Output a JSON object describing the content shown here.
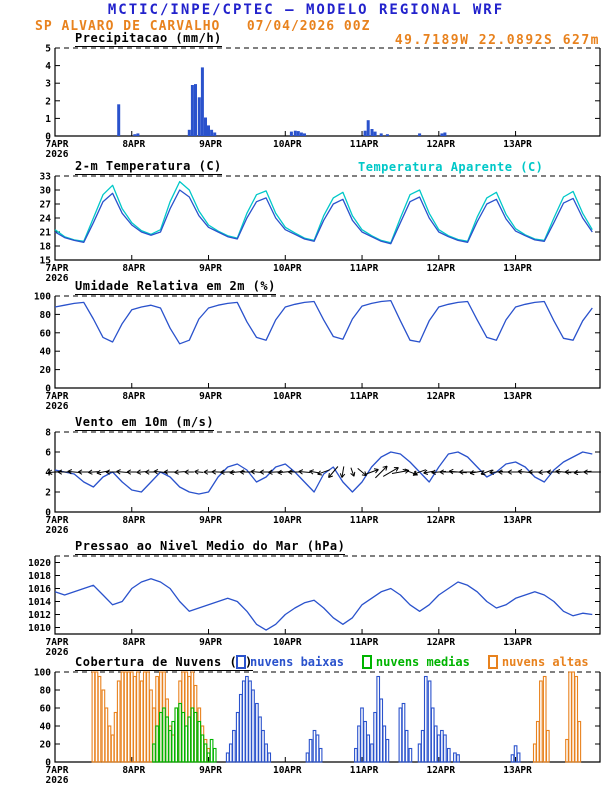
{
  "header": {
    "title": "MCTIC/INPE/CPTEC — MODELO REGIONAL WRF",
    "subtitle": "SP ALVARO DE CARVALHO   07/04/2026 00Z",
    "location": "49.7189W 22.0892S 627m"
  },
  "colors": {
    "blue": "#2a52cc",
    "cyan": "#00c8c8",
    "green": "#00b400",
    "orange": "#e8821e",
    "title": "#2222cc",
    "black": "#000000"
  },
  "x_axis": {
    "tick_labels": [
      "7APR",
      "8APR",
      "9APR",
      "10APR",
      "11APR",
      "12APR",
      "13APR"
    ],
    "year_label": "2026",
    "range_days": [
      0,
      7.1
    ]
  },
  "chart_data": [
    {
      "type": "bar",
      "title": "Precipitacao (mm/h)",
      "ylim": [
        0,
        5
      ],
      "yticks": [
        0,
        1,
        2,
        3,
        4,
        5
      ],
      "series": [
        {
          "name": "precipitacao",
          "color": "blue",
          "points": [
            [
              0.83,
              1.8
            ],
            [
              1.04,
              0.1
            ],
            [
              1.08,
              0.15
            ],
            [
              1.75,
              0.35
            ],
            [
              1.79,
              2.9
            ],
            [
              1.83,
              2.95
            ],
            [
              1.88,
              2.2
            ],
            [
              1.92,
              3.9
            ],
            [
              1.96,
              1.05
            ],
            [
              2.0,
              0.6
            ],
            [
              2.04,
              0.35
            ],
            [
              2.08,
              0.2
            ],
            [
              3.08,
              0.25
            ],
            [
              3.13,
              0.3
            ],
            [
              3.17,
              0.28
            ],
            [
              3.21,
              0.2
            ],
            [
              3.25,
              0.15
            ],
            [
              4.04,
              0.3
            ],
            [
              4.08,
              0.9
            ],
            [
              4.13,
              0.4
            ],
            [
              4.17,
              0.25
            ],
            [
              4.25,
              0.15
            ],
            [
              4.33,
              0.1
            ],
            [
              4.75,
              0.15
            ],
            [
              5.04,
              0.15
            ],
            [
              5.08,
              0.2
            ]
          ]
        }
      ]
    },
    {
      "type": "line",
      "title": "2-m Temperatura (C)",
      "right_legend": "Temperatura Aparente (C)",
      "ylim": [
        15,
        33
      ],
      "yticks": [
        15,
        18,
        21,
        24,
        27,
        30,
        33
      ],
      "x_step_days": 0.125,
      "series": [
        {
          "name": "temperatura_aparente",
          "color": "cyan",
          "values": [
            21.5,
            20.0,
            19.3,
            19.0,
            24.0,
            29.0,
            31.0,
            26.0,
            23.0,
            21.3,
            20.5,
            21.5,
            27.5,
            31.8,
            30.0,
            25.5,
            22.5,
            21.2,
            20.2,
            19.7,
            25.0,
            29.0,
            29.8,
            25.0,
            22.0,
            20.8,
            19.7,
            19.2,
            24.5,
            28.3,
            29.5,
            24.5,
            21.5,
            20.2,
            19.2,
            18.7,
            24.0,
            29.0,
            30.0,
            25.0,
            21.5,
            20.2,
            19.4,
            19.0,
            24.2,
            28.3,
            29.5,
            24.8,
            21.7,
            20.4,
            19.5,
            19.2,
            24.0,
            28.5,
            29.7,
            25.0,
            21.5
          ]
        },
        {
          "name": "temperatura_2m",
          "color": "blue",
          "values": [
            21.0,
            19.8,
            19.2,
            18.8,
            23.0,
            27.5,
            29.3,
            25.0,
            22.5,
            21.0,
            20.3,
            21.0,
            26.0,
            30.0,
            28.5,
            24.5,
            22.0,
            21.0,
            20.0,
            19.5,
            24.0,
            27.5,
            28.3,
            24.0,
            21.5,
            20.5,
            19.5,
            19.0,
            23.5,
            27.0,
            28.0,
            23.5,
            21.0,
            20.0,
            19.0,
            18.5,
            23.0,
            27.5,
            28.5,
            24.0,
            21.0,
            20.0,
            19.2,
            18.8,
            23.2,
            27.0,
            28.0,
            23.8,
            21.2,
            20.2,
            19.3,
            19.0,
            23.0,
            27.2,
            28.2,
            24.0,
            21.0
          ]
        }
      ]
    },
    {
      "type": "line",
      "title": "Umidade Relativa em 2m (%)",
      "ylim": [
        0,
        100
      ],
      "yticks": [
        0,
        20,
        40,
        60,
        80,
        100
      ],
      "x_step_days": 0.125,
      "series": [
        {
          "name": "umidade_relativa",
          "color": "blue",
          "values": [
            88,
            90,
            92,
            93,
            75,
            55,
            50,
            70,
            85,
            88,
            90,
            87,
            65,
            48,
            52,
            75,
            87,
            90,
            92,
            93,
            72,
            55,
            52,
            74,
            88,
            91,
            93,
            94,
            74,
            56,
            53,
            75,
            89,
            92,
            94,
            95,
            73,
            52,
            50,
            73,
            88,
            91,
            93,
            94,
            74,
            55,
            52,
            74,
            88,
            91,
            93,
            94,
            73,
            54,
            52,
            73,
            87
          ]
        }
      ]
    },
    {
      "type": "line",
      "title": "Vento em 10m (m/s)",
      "ylim": [
        0,
        8
      ],
      "yticks": [
        0,
        2,
        4,
        6,
        8
      ],
      "x_step_days": 0.125,
      "series": [
        {
          "name": "vento_10m",
          "color": "blue",
          "values": [
            4.2,
            4.0,
            3.8,
            3.0,
            2.5,
            3.5,
            4.0,
            3.0,
            2.2,
            2.0,
            3.0,
            4.0,
            3.5,
            2.5,
            2.0,
            1.8,
            2.0,
            3.5,
            4.5,
            4.8,
            4.2,
            3.0,
            3.5,
            4.5,
            4.8,
            4.0,
            3.0,
            2.0,
            3.8,
            4.5,
            3.0,
            2.0,
            3.0,
            4.5,
            5.5,
            6.0,
            5.8,
            5.0,
            4.0,
            3.0,
            4.5,
            5.8,
            6.0,
            5.5,
            4.5,
            3.5,
            4.0,
            4.8,
            5.0,
            4.5,
            3.5,
            3.0,
            4.2,
            5.0,
            5.5,
            6.0,
            5.8
          ]
        }
      ],
      "arrows": {
        "y_value": 4,
        "angles": [
          185,
          180,
          175,
          180,
          185,
          190,
          180,
          175,
          180,
          185,
          180,
          175,
          180,
          185,
          180,
          175,
          180,
          178,
          182,
          185,
          180,
          175,
          180,
          183,
          185,
          180,
          175,
          170,
          200,
          230,
          260,
          290,
          320,
          20,
          45,
          30,
          10,
          340,
          200,
          190,
          185,
          180,
          175,
          180,
          190,
          200,
          185,
          180,
          180,
          175,
          180,
          185,
          180,
          175,
          180,
          185,
          180
        ]
      }
    },
    {
      "type": "line",
      "title": "Pressao ao Nivel Medio do Mar (hPa)",
      "ylim": [
        1009,
        1021
      ],
      "yticks": [
        1010,
        1012,
        1014,
        1016,
        1018,
        1020
      ],
      "x_step_days": 0.125,
      "series": [
        {
          "name": "pressao_nivel_mar",
          "color": "blue",
          "values": [
            1015.5,
            1015.0,
            1015.5,
            1016.0,
            1016.5,
            1015.0,
            1013.5,
            1014.0,
            1016.0,
            1017.0,
            1017.5,
            1017.0,
            1016.0,
            1014.0,
            1012.5,
            1013.0,
            1013.5,
            1014.0,
            1014.5,
            1014.0,
            1012.5,
            1010.5,
            1009.6,
            1010.5,
            1012.0,
            1013.0,
            1013.8,
            1014.2,
            1013.0,
            1011.5,
            1010.5,
            1011.5,
            1013.5,
            1014.5,
            1015.5,
            1016.0,
            1015.0,
            1013.5,
            1012.5,
            1013.5,
            1015.0,
            1016.0,
            1017.0,
            1016.5,
            1015.5,
            1014.0,
            1013.0,
            1013.5,
            1014.5,
            1015.0,
            1015.5,
            1015.0,
            1014.0,
            1012.5,
            1011.8,
            1012.2,
            1012.0
          ]
        }
      ]
    },
    {
      "type": "bar",
      "bar_style": "outline",
      "title": "Cobertura de Nuvens (%)",
      "ylim": [
        0,
        100
      ],
      "yticks": [
        0,
        20,
        40,
        60,
        80,
        100
      ],
      "legend": [
        {
          "label": "nuvens baixas",
          "color": "blue"
        },
        {
          "label": "nuvens medias",
          "color": "green"
        },
        {
          "label": "nuvens altas",
          "color": "orange"
        }
      ],
      "series": [
        {
          "name": "nuvens_altas",
          "color": "orange",
          "points": [
            [
              0.5,
              100
            ],
            [
              0.54,
              100
            ],
            [
              0.58,
              95
            ],
            [
              0.63,
              80
            ],
            [
              0.67,
              60
            ],
            [
              0.71,
              40
            ],
            [
              0.75,
              30
            ],
            [
              0.79,
              55
            ],
            [
              0.83,
              90
            ],
            [
              0.88,
              100
            ],
            [
              0.92,
              100
            ],
            [
              0.96,
              100
            ],
            [
              1.0,
              100
            ],
            [
              1.04,
              95
            ],
            [
              1.08,
              100
            ],
            [
              1.13,
              90
            ],
            [
              1.17,
              100
            ],
            [
              1.21,
              100
            ],
            [
              1.25,
              80
            ],
            [
              1.29,
              60
            ],
            [
              1.33,
              95
            ],
            [
              1.38,
              100
            ],
            [
              1.42,
              100
            ],
            [
              1.46,
              70
            ],
            [
              1.5,
              40
            ],
            [
              1.54,
              30
            ],
            [
              1.58,
              60
            ],
            [
              1.63,
              90
            ],
            [
              1.67,
              100
            ],
            [
              1.71,
              100
            ],
            [
              1.75,
              95
            ],
            [
              1.79,
              100
            ],
            [
              1.83,
              85
            ],
            [
              1.88,
              60
            ],
            [
              1.92,
              40
            ],
            [
              1.96,
              25
            ],
            [
              2.0,
              15
            ],
            [
              6.25,
              20
            ],
            [
              6.29,
              45
            ],
            [
              6.33,
              90
            ],
            [
              6.38,
              95
            ],
            [
              6.42,
              35
            ],
            [
              6.67,
              25
            ],
            [
              6.71,
              100
            ],
            [
              6.75,
              100
            ],
            [
              6.79,
              95
            ],
            [
              6.83,
              45
            ]
          ]
        },
        {
          "name": "nuvens_medias",
          "color": "green",
          "points": [
            [
              1.29,
              20
            ],
            [
              1.33,
              40
            ],
            [
              1.38,
              55
            ],
            [
              1.42,
              60
            ],
            [
              1.46,
              50
            ],
            [
              1.5,
              35
            ],
            [
              1.54,
              45
            ],
            [
              1.58,
              60
            ],
            [
              1.63,
              65
            ],
            [
              1.67,
              55
            ],
            [
              1.71,
              40
            ],
            [
              1.75,
              50
            ],
            [
              1.79,
              60
            ],
            [
              1.83,
              55
            ],
            [
              1.88,
              45
            ],
            [
              1.92,
              30
            ],
            [
              1.96,
              20
            ],
            [
              2.0,
              10
            ],
            [
              2.04,
              25
            ],
            [
              2.08,
              15
            ]
          ]
        },
        {
          "name": "nuvens_baixas",
          "color": "blue",
          "points": [
            [
              2.25,
              10
            ],
            [
              2.29,
              20
            ],
            [
              2.33,
              35
            ],
            [
              2.38,
              55
            ],
            [
              2.42,
              75
            ],
            [
              2.46,
              90
            ],
            [
              2.5,
              95
            ],
            [
              2.54,
              90
            ],
            [
              2.58,
              80
            ],
            [
              2.63,
              65
            ],
            [
              2.67,
              50
            ],
            [
              2.71,
              35
            ],
            [
              2.75,
              20
            ],
            [
              2.79,
              10
            ],
            [
              3.29,
              10
            ],
            [
              3.33,
              25
            ],
            [
              3.38,
              35
            ],
            [
              3.42,
              30
            ],
            [
              3.46,
              15
            ],
            [
              3.92,
              15
            ],
            [
              3.96,
              40
            ],
            [
              4.0,
              60
            ],
            [
              4.04,
              45
            ],
            [
              4.08,
              30
            ],
            [
              4.13,
              20
            ],
            [
              4.17,
              55
            ],
            [
              4.21,
              95
            ],
            [
              4.25,
              70
            ],
            [
              4.29,
              40
            ],
            [
              4.33,
              25
            ],
            [
              4.5,
              60
            ],
            [
              4.54,
              65
            ],
            [
              4.58,
              35
            ],
            [
              4.63,
              15
            ],
            [
              4.75,
              20
            ],
            [
              4.79,
              35
            ],
            [
              4.83,
              95
            ],
            [
              4.88,
              90
            ],
            [
              4.92,
              60
            ],
            [
              4.96,
              40
            ],
            [
              5.0,
              30
            ],
            [
              5.04,
              35
            ],
            [
              5.08,
              30
            ],
            [
              5.13,
              15
            ],
            [
              5.21,
              10
            ],
            [
              5.25,
              8
            ],
            [
              5.96,
              8
            ],
            [
              6.0,
              18
            ],
            [
              6.04,
              10
            ]
          ]
        }
      ]
    }
  ]
}
